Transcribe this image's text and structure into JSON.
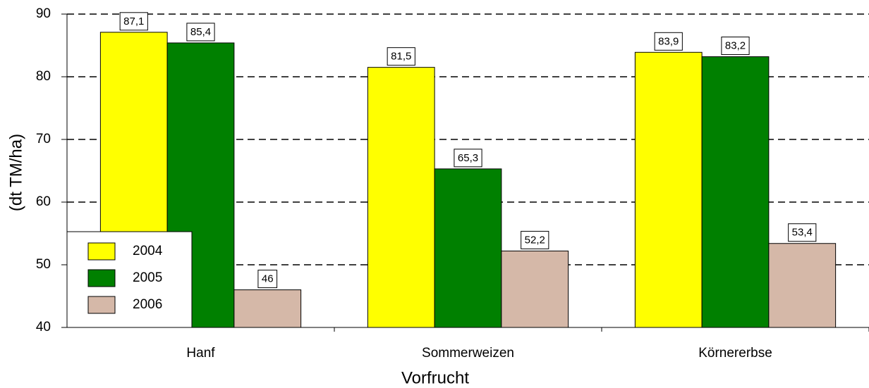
{
  "chart_data": {
    "type": "bar",
    "categories": [
      "Hanf",
      "Sommerweizen",
      "Körnererbse"
    ],
    "series": [
      {
        "name": "2004",
        "color": "#ffff00",
        "values": [
          87.1,
          81.5,
          83.9
        ],
        "value_labels": [
          "87,1",
          "81,5",
          "83,9"
        ]
      },
      {
        "name": "2005",
        "color": "#008000",
        "values": [
          85.4,
          65.3,
          83.2
        ],
        "value_labels": [
          "85,4",
          "65,3",
          "83,2"
        ]
      },
      {
        "name": "2006",
        "color": "#d5b8a8",
        "values": [
          46,
          52.2,
          53.4
        ],
        "value_labels": [
          "46",
          "52,2",
          "53,4"
        ]
      }
    ],
    "ylim": [
      40,
      90
    ],
    "yticks": [
      40,
      50,
      60,
      70,
      80,
      90
    ],
    "grid": true,
    "y_label": "(dt TM/ha)",
    "x_label": "Vorfrucht",
    "legend": "lower left"
  }
}
